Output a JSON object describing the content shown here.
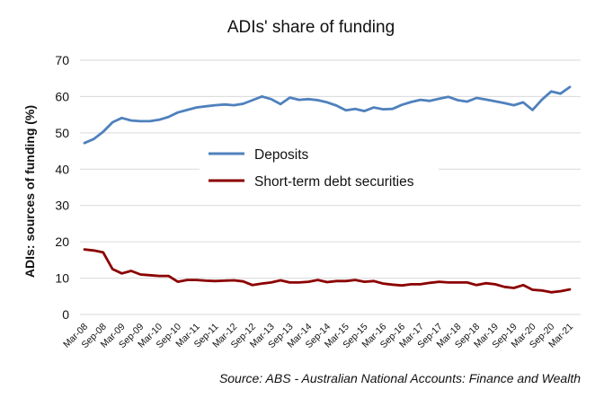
{
  "chart_data": {
    "type": "line",
    "title": "ADIs' share of funding",
    "ylabel": "ADIs: sources of funding (%)",
    "xlabel": "",
    "ylim": [
      0,
      70
    ],
    "yticks": [
      0,
      10,
      20,
      30,
      40,
      50,
      60,
      70
    ],
    "grid": true,
    "legend_position": "center-left",
    "source": "Source:  ABS - Australian National Accounts: Finance and Wealth",
    "x_tick_labels": [
      "Mar-08",
      "Sep-08",
      "Mar-09",
      "Sep-09",
      "Mar-10",
      "Sep-10",
      "Mar-11",
      "Sep-11",
      "Mar-12",
      "Sep-12",
      "Mar-13",
      "Sep-13",
      "Mar-14",
      "Sep-14",
      "Mar-15",
      "Sep-15",
      "Mar-16",
      "Sep-16",
      "Mar-17",
      "Sep-17",
      "Mar-18",
      "Sep-18",
      "Mar-19",
      "Sep-19",
      "Mar-20",
      "Sep-20",
      "Mar-21"
    ],
    "x": [
      "Mar-08",
      "Jun-08",
      "Sep-08",
      "Dec-08",
      "Mar-09",
      "Jun-09",
      "Sep-09",
      "Dec-09",
      "Mar-10",
      "Jun-10",
      "Sep-10",
      "Dec-10",
      "Mar-11",
      "Jun-11",
      "Sep-11",
      "Dec-11",
      "Mar-12",
      "Jun-12",
      "Sep-12",
      "Dec-12",
      "Mar-13",
      "Jun-13",
      "Sep-13",
      "Dec-13",
      "Mar-14",
      "Jun-14",
      "Sep-14",
      "Dec-14",
      "Mar-15",
      "Jun-15",
      "Sep-15",
      "Dec-15",
      "Mar-16",
      "Jun-16",
      "Sep-16",
      "Dec-16",
      "Mar-17",
      "Jun-17",
      "Sep-17",
      "Dec-17",
      "Mar-18",
      "Jun-18",
      "Sep-18",
      "Dec-18",
      "Mar-19",
      "Jun-19",
      "Sep-19",
      "Dec-19",
      "Mar-20",
      "Jun-20",
      "Sep-20",
      "Dec-20",
      "Mar-21"
    ],
    "series": [
      {
        "name": "Deposits",
        "color": "#4f81bd",
        "values": [
          47.2,
          48.3,
          50.3,
          52.9,
          54.1,
          53.4,
          53.2,
          53.2,
          53.6,
          54.4,
          55.6,
          56.3,
          57.0,
          57.3,
          57.6,
          57.8,
          57.6,
          58.0,
          59.0,
          60.0,
          59.3,
          57.9,
          59.7,
          59.1,
          59.3,
          59.0,
          58.4,
          57.5,
          56.2,
          56.6,
          56.0,
          57.0,
          56.5,
          56.6,
          57.7,
          58.5,
          59.1,
          58.8,
          59.4,
          59.9,
          59.0,
          58.6,
          59.6,
          59.2,
          58.7,
          58.2,
          57.6,
          58.4,
          56.3,
          59.1,
          61.4,
          60.8,
          62.6
        ]
      },
      {
        "name": "Short-term debt securities",
        "color": "#8b0000",
        "values": [
          17.9,
          17.6,
          17.1,
          12.5,
          11.3,
          12.0,
          11.0,
          10.8,
          10.6,
          10.6,
          9.0,
          9.5,
          9.5,
          9.3,
          9.2,
          9.3,
          9.4,
          9.1,
          8.1,
          8.5,
          8.8,
          9.4,
          8.8,
          8.8,
          9.0,
          9.5,
          8.9,
          9.2,
          9.2,
          9.5,
          9.0,
          9.2,
          8.5,
          8.2,
          8.0,
          8.3,
          8.3,
          8.7,
          9.0,
          8.8,
          8.8,
          8.8,
          8.1,
          8.6,
          8.3,
          7.6,
          7.3,
          8.1,
          6.8,
          6.6,
          6.1,
          6.4,
          6.9
        ]
      }
    ]
  }
}
